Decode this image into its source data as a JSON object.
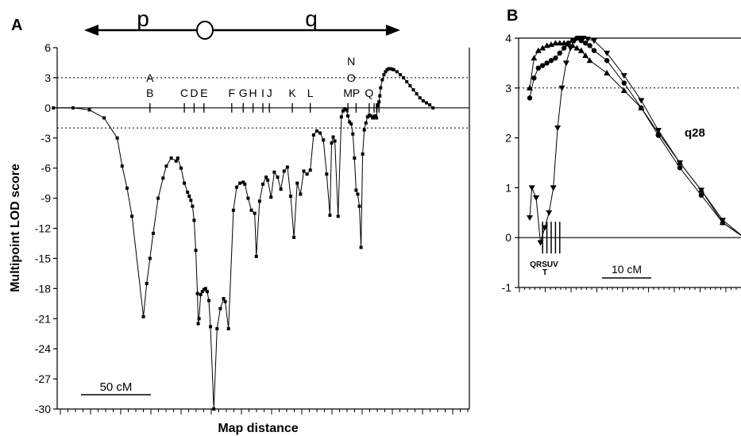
{
  "panel_a": {
    "label": "A",
    "arm_p": "p",
    "arm_q": "q",
    "ylabel": "Multipoint LOD score",
    "xlabel": "Map distance",
    "scalebar": "50 cM"
  },
  "panel_b": {
    "label": "B",
    "annotation": "q28",
    "scalebar": "10 cM",
    "marker_row1": "QRSUV",
    "marker_row2": "T"
  },
  "chart_data": [
    {
      "type": "line",
      "panel": "A",
      "xlabel": "Map distance",
      "ylabel": "Multipoint LOD score",
      "ylim": [
        -30,
        6
      ],
      "yticks": [
        6,
        3,
        0,
        -3,
        -6,
        -9,
        -12,
        -15,
        -18,
        -21,
        -24,
        -27,
        -30
      ],
      "xlim_cM": [
        0,
        270
      ],
      "thresholds": [
        3,
        -2
      ],
      "centromere_cM": 78,
      "scalebar_cM": 50,
      "marker_labels": [
        {
          "text": "A",
          "x": 47,
          "row": 1
        },
        {
          "text": "B",
          "x": 47,
          "row": 2
        },
        {
          "text": "C",
          "x": 68,
          "row": 2
        },
        {
          "text": "D",
          "x": 74,
          "row": 2
        },
        {
          "text": "E",
          "x": 80,
          "row": 2
        },
        {
          "text": "F",
          "x": 97,
          "row": 2
        },
        {
          "text": "G",
          "x": 104,
          "row": 2
        },
        {
          "text": "H",
          "x": 110,
          "row": 2
        },
        {
          "text": "I",
          "x": 116,
          "row": 2
        },
        {
          "text": "J",
          "x": 120,
          "row": 2
        },
        {
          "text": "K",
          "x": 134,
          "row": 2
        },
        {
          "text": "L",
          "x": 145,
          "row": 2
        },
        {
          "text": "N",
          "x": 170,
          "row": 0
        },
        {
          "text": "O",
          "x": 170,
          "row": 1
        },
        {
          "text": "M",
          "x": 168,
          "row": 2
        },
        {
          "text": "P",
          "x": 173,
          "row": 2
        },
        {
          "text": "Q",
          "x": 181,
          "row": 2
        }
      ],
      "series": [
        {
          "x": [
            -12,
            0,
            10,
            19,
            27,
            30,
            33,
            36,
            43,
            45,
            47,
            49,
            52,
            55,
            57,
            60,
            63,
            64,
            66,
            68,
            70,
            71,
            72,
            73,
            74,
            75,
            76,
            76.5,
            77,
            78,
            79,
            80,
            81,
            82,
            83,
            84,
            86,
            88,
            90,
            92,
            93,
            95,
            98,
            100,
            102,
            104,
            105,
            107,
            109,
            111,
            112,
            114,
            116,
            118,
            119,
            121,
            123,
            125,
            127,
            129,
            131,
            133,
            135,
            137,
            139,
            141,
            143,
            145,
            147,
            149,
            151,
            153,
            155,
            157,
            158,
            159,
            160,
            162,
            164,
            165,
            166,
            167,
            168,
            169,
            170,
            171,
            172,
            173,
            174,
            175,
            176,
            177,
            178,
            179,
            180,
            181,
            182,
            183,
            183.5,
            184,
            184.5,
            185,
            185.5,
            186,
            186.5,
            187,
            187.5,
            188,
            189,
            190,
            191,
            192,
            193,
            194,
            195,
            196,
            198,
            200,
            202,
            204,
            206,
            208,
            210,
            212,
            214,
            216,
            218,
            220
          ],
          "y": [
            0,
            0,
            -0.2,
            -1,
            -3,
            -5.8,
            -8,
            -10.8,
            -20.8,
            -17.5,
            -15,
            -12.5,
            -9,
            -7,
            -5.8,
            -5,
            -5.3,
            -5,
            -6,
            -7.5,
            -8.4,
            -8.8,
            -9.2,
            -9.8,
            -11.2,
            -14.2,
            -18.5,
            -21.5,
            -21,
            -18.6,
            -18.3,
            -18.1,
            -18,
            -18.3,
            -19.2,
            -21.8,
            -30,
            -22,
            -20,
            -19,
            -19.3,
            -22,
            -10.2,
            -7.9,
            -7.5,
            -7.4,
            -7.6,
            -9,
            -10.2,
            -10.5,
            -14.8,
            -9.3,
            -7.6,
            -6.9,
            -7.2,
            -8.9,
            -6.4,
            -6.9,
            -8.1,
            -6.3,
            -5.9,
            -8.8,
            -12.9,
            -7.5,
            -8.6,
            -6.3,
            -6.6,
            -6.2,
            -2.7,
            -2.3,
            -2.5,
            -3.2,
            -6.6,
            -10.7,
            -3.5,
            -2.9,
            -3.3,
            -10.8,
            -0.9,
            -0.3,
            -0.1,
            -0.2,
            -0.8,
            -1.4,
            -1.6,
            -2.6,
            -5,
            -8.2,
            -8.6,
            -9.8,
            -13.9,
            -4.6,
            -2.2,
            -1.5,
            -0.9,
            -0.7,
            -0.8,
            -1.0,
            -1.0,
            -0.9,
            -0.8,
            -0.9,
            -1.0,
            0.2,
            0.3,
            0.6,
            1.2,
            2.0,
            2.8,
            3.3,
            3.6,
            3.8,
            3.9,
            3.9,
            3.85,
            3.8,
            3.6,
            3.3,
            3.0,
            2.6,
            2.2,
            1.8,
            1.4,
            1.0,
            0.7,
            0.5,
            0.3,
            0
          ]
        }
      ]
    },
    {
      "type": "line",
      "panel": "B",
      "annotation": "q28",
      "ylim": [
        -1,
        4
      ],
      "yticks": [
        4,
        3,
        2,
        1,
        0,
        -1
      ],
      "xlim_cM": [
        0,
        50
      ],
      "threshold": 3,
      "scalebar_cM": 10,
      "markers_cM": [
        3,
        4,
        5,
        6,
        7
      ],
      "series": [
        {
          "marker": "triangle-up",
          "x": [
            0,
            1,
            2,
            3,
            4,
            5,
            6,
            7,
            8,
            9,
            10,
            11,
            12,
            13,
            14,
            18,
            22,
            26,
            30,
            35,
            40,
            45,
            50
          ],
          "y": [
            3.0,
            3.6,
            3.75,
            3.8,
            3.85,
            3.87,
            3.9,
            3.9,
            3.9,
            3.88,
            3.85,
            3.8,
            3.75,
            3.65,
            3.55,
            3.3,
            2.95,
            2.6,
            2.1,
            1.5,
            0.95,
            0.3,
            0.0
          ]
        },
        {
          "marker": "circle",
          "x": [
            0,
            1,
            2,
            3,
            4,
            5,
            6,
            7,
            8,
            9,
            10,
            11,
            12,
            13,
            14,
            15,
            18,
            22,
            26,
            30,
            35,
            40,
            45,
            50
          ],
          "y": [
            2.8,
            3.2,
            3.4,
            3.45,
            3.5,
            3.55,
            3.6,
            3.7,
            3.8,
            3.9,
            3.95,
            4.0,
            3.95,
            3.9,
            3.85,
            3.75,
            3.55,
            3.1,
            2.6,
            2.05,
            1.4,
            0.85,
            0.3,
            0.0
          ]
        },
        {
          "marker": "triangle-down",
          "x": [
            0,
            0.5,
            1.5,
            2.5,
            3.5,
            4.5,
            5.5,
            6.5,
            7.5,
            8.5,
            9.5,
            10.5,
            11.5,
            12.5,
            13.5,
            15,
            18,
            22,
            26,
            30,
            35,
            40,
            45,
            50
          ],
          "y": [
            0.4,
            1.0,
            0.8,
            -0.1,
            0.2,
            0.5,
            1.0,
            2.2,
            3.0,
            3.5,
            3.8,
            3.95,
            4.0,
            4.0,
            3.98,
            3.95,
            3.7,
            3.25,
            2.75,
            2.15,
            1.5,
            0.95,
            0.35,
            0.0
          ]
        }
      ]
    }
  ]
}
